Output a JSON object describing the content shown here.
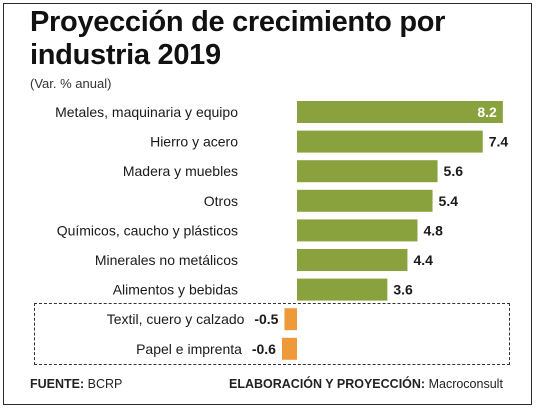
{
  "header": {
    "title": "Proyección de crecimiento por industria 2019",
    "subtitle": "(Var. % anual)"
  },
  "footer": {
    "source_label": "FUENTE:",
    "source_value": "BCRP",
    "credit_label": "ELABORACIÓN Y PROYECCIÓN:",
    "credit_value": "Macroconsult"
  },
  "colors": {
    "positive_bar": "#8aa23e",
    "negative_bar": "#ef9a3a",
    "label_inside": "#ffffff",
    "label_outside": "#1a1a1a"
  },
  "chart_data": {
    "type": "bar",
    "orientation": "horizontal",
    "title": "Proyección de crecimiento por industria 2019",
    "subtitle": "(Var. % anual)",
    "categories": [
      "Metales, maquinaria y equipo",
      "Hierro y acero",
      "Madera y muebles",
      "Otros",
      "Químicos, caucho y plásticos",
      "Minerales no metálicos",
      "Alimentos y bebidas",
      "Textil, cuero y calzado",
      "Papel e imprenta"
    ],
    "values": [
      8.2,
      7.4,
      5.6,
      5.4,
      4.8,
      4.4,
      3.6,
      -0.5,
      -0.6
    ],
    "value_labels": [
      "8.2",
      "7.4",
      "5.6",
      "5.4",
      "4.8",
      "4.4",
      "3.6",
      "-0.5",
      "-0.6"
    ],
    "highlighted_categories": [
      "Textil, cuero y calzado",
      "Papel e imprenta"
    ],
    "xlim": [
      -0.6,
      8.2
    ],
    "grid": false,
    "legend": "none"
  }
}
